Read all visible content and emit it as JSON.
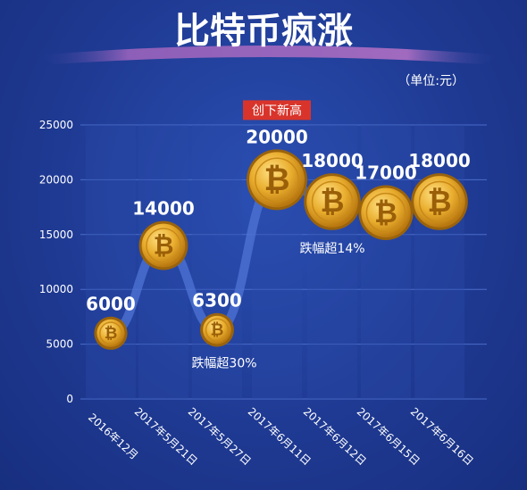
{
  "title": "比特币疯涨",
  "unit_label": "（单位:元）",
  "chart_data": {
    "type": "line",
    "title": "比特币疯涨",
    "ylabel": "（单位:元）",
    "categories": [
      "2016年12月",
      "2017年5月21日",
      "2017年5月27日",
      "2017年6月11日",
      "2017年6月12日",
      "2017年6月15日",
      "2017年6月16日"
    ],
    "values": [
      6000,
      14000,
      6300,
      20000,
      18000,
      17000,
      18000
    ],
    "ylim": [
      0,
      25000
    ],
    "yticks": [
      0,
      5000,
      10000,
      15000,
      20000,
      25000
    ],
    "grid": true,
    "data_labels": [
      "6000",
      "14000",
      "6300",
      "20000",
      "18000",
      "17000",
      "18000"
    ],
    "annotations": [
      {
        "text": "创下新高",
        "index": 3
      },
      {
        "text": "跌幅超30%",
        "index": 2
      },
      {
        "text": "跌幅超14%",
        "index": 4
      }
    ],
    "colors": {
      "background": "#1f3a93",
      "coin": "#e0a42a",
      "badge": "#d9342b",
      "line": "#3d63c9"
    }
  }
}
